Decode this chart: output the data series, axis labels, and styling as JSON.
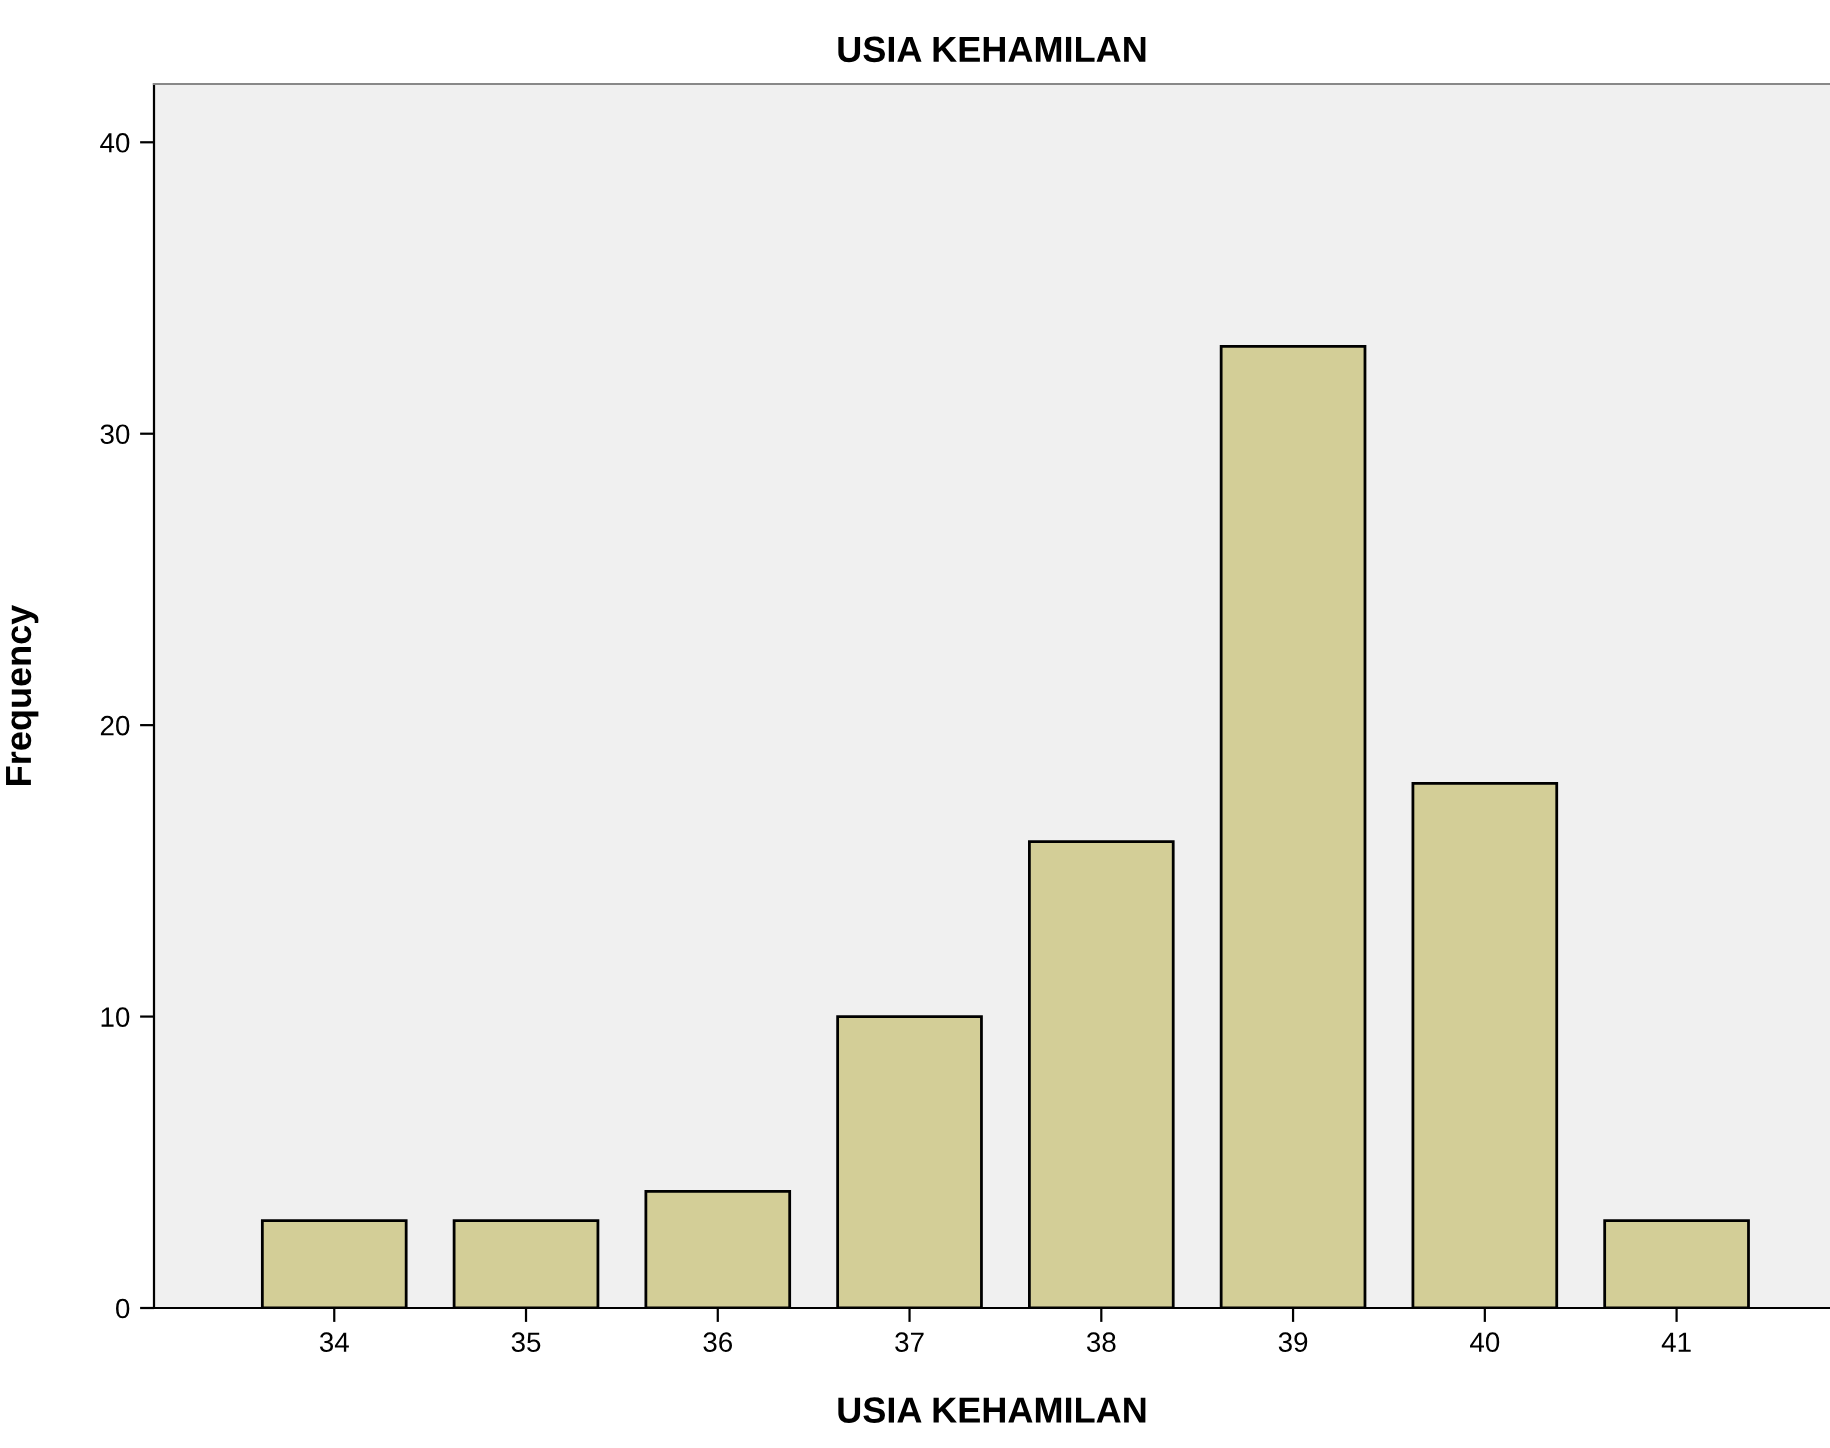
{
  "chart_data": {
    "type": "bar",
    "title": "USIA KEHAMILAN",
    "xlabel": "USIA KEHAMILAN",
    "ylabel": "Frequency",
    "categories": [
      "34",
      "35",
      "36",
      "37",
      "38",
      "39",
      "40",
      "41"
    ],
    "values": [
      3,
      3,
      4,
      10,
      16,
      33,
      18,
      3
    ],
    "color": "#d3ce97",
    "ylim": [
      0,
      42
    ],
    "yticks": [
      0,
      10,
      20,
      30,
      40
    ],
    "grid": false,
    "legend": false
  }
}
